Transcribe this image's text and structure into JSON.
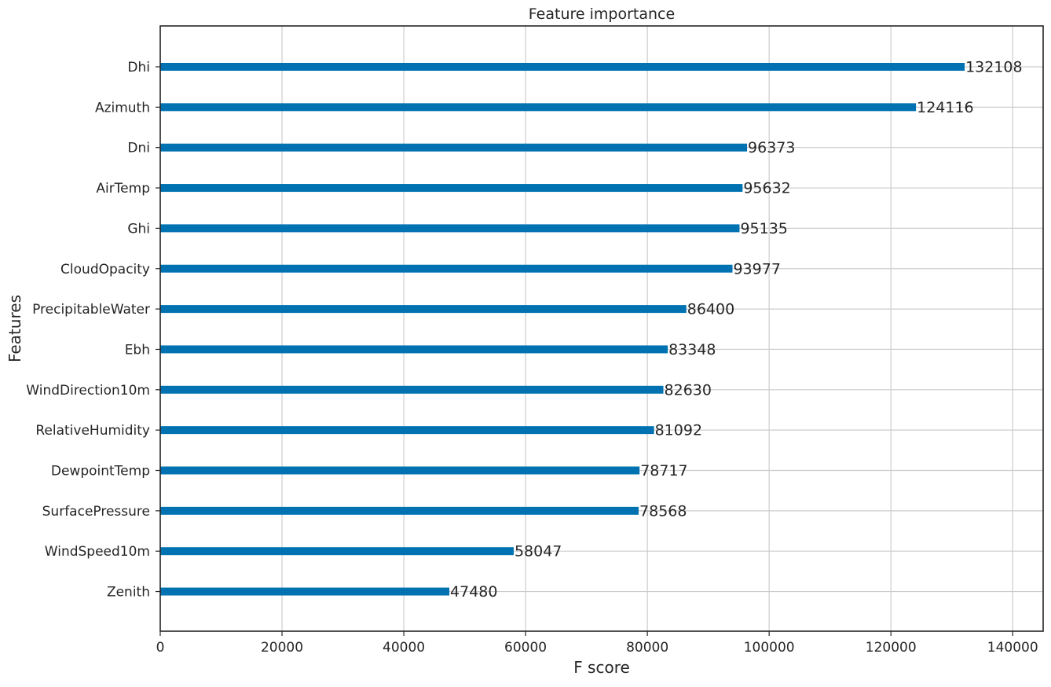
{
  "chart_data": {
    "type": "bar",
    "orientation": "horizontal",
    "title": "Feature importance",
    "xlabel": "F score",
    "ylabel": "Features",
    "xlim": [
      0,
      145000
    ],
    "xticks": [
      0,
      20000,
      40000,
      60000,
      80000,
      100000,
      120000,
      140000
    ],
    "grid": true,
    "bar_color": "#0072b2",
    "categories": [
      "Dhi",
      "Azimuth",
      "Dni",
      "AirTemp",
      "Ghi",
      "CloudOpacity",
      "PrecipitableWater",
      "Ebh",
      "WindDirection10m",
      "RelativeHumidity",
      "DewpointTemp",
      "SurfacePressure",
      "WindSpeed10m",
      "Zenith"
    ],
    "values": [
      132108,
      124116,
      96373,
      95632,
      95135,
      93977,
      86400,
      83348,
      82630,
      81092,
      78717,
      78568,
      58047,
      47480
    ]
  }
}
